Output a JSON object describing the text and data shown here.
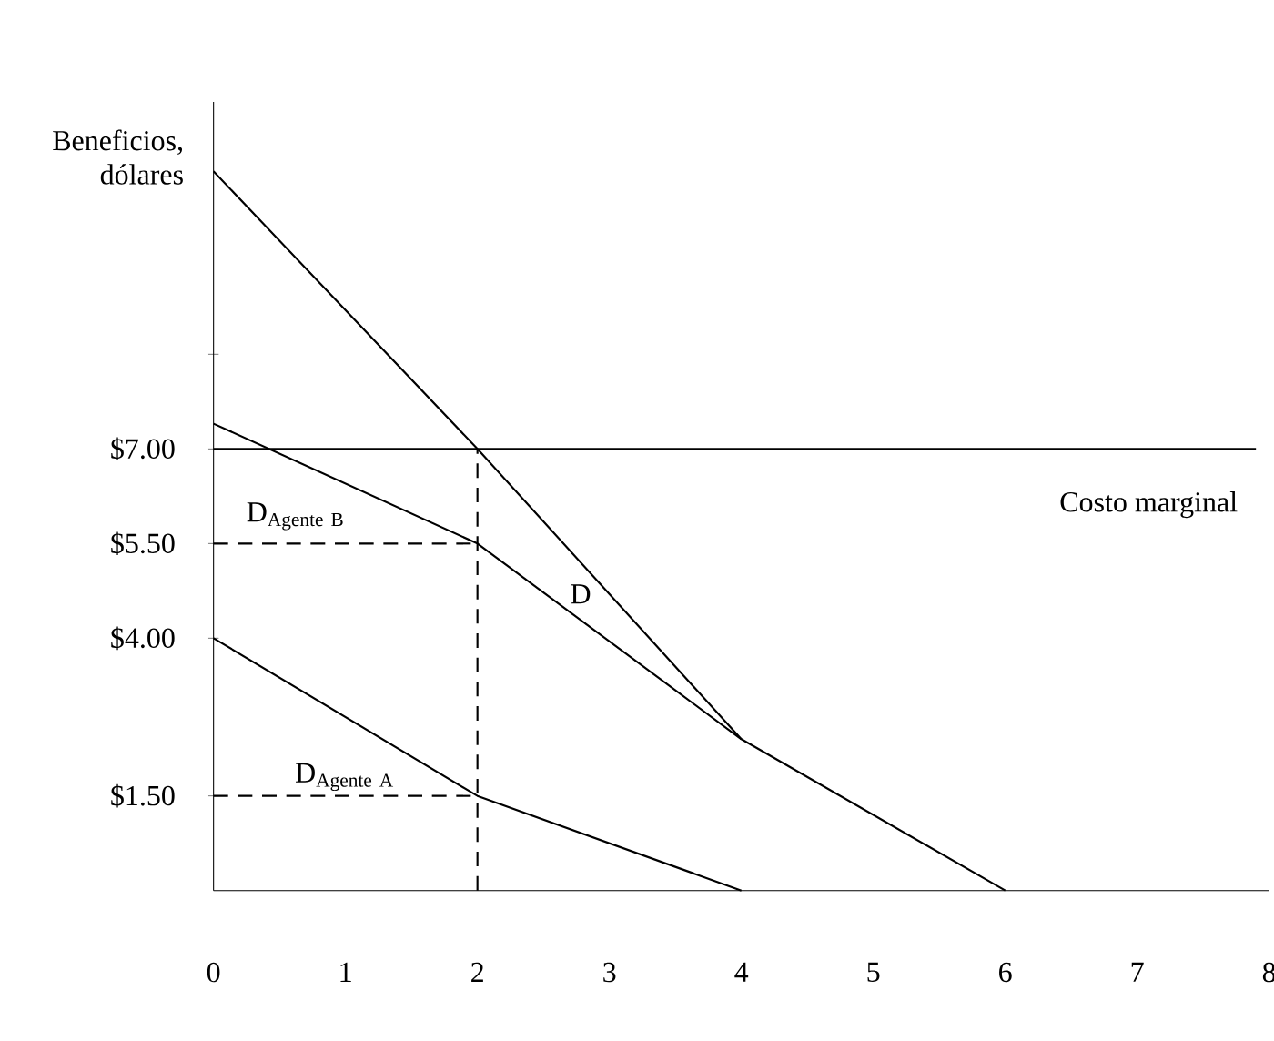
{
  "chart_data": {
    "type": "line",
    "ylabel": "Beneficios, dólares",
    "xlim": [
      0,
      8
    ],
    "xticks": [
      0,
      1,
      2,
      3,
      4,
      5,
      6,
      7,
      8
    ],
    "ylim": [
      0,
      12.5
    ],
    "yticks": [
      {
        "value": 1.5,
        "label": "$1.50"
      },
      {
        "value": 4,
        "label": "$4.00"
      },
      {
        "value": 5.5,
        "label": "$5.50"
      },
      {
        "value": 7,
        "label": "$7.00"
      },
      {
        "value": 8.5,
        "label": null
      }
    ],
    "grid": false,
    "line_style": "solid",
    "marker": "none",
    "series": [
      {
        "name": "\\mathrm{D}_{\\mathrm{Agente\\ A}}",
        "color": "#000000",
        "x": [
          0,
          2,
          4
        ],
        "values": [
          4,
          1.5,
          0
        ]
      },
      {
        "name": "\\mathrm{D}_{\\mathrm{Agente\\ B}}",
        "color": "#000000",
        "x": [
          0,
          2,
          4,
          6
        ],
        "values": [
          7.4,
          5.5,
          2.4,
          0
        ]
      },
      {
        "name": "D",
        "color": "#000000",
        "x": [
          0,
          2,
          4
        ],
        "values": [
          11.4,
          7,
          2.4
        ]
      },
      {
        "name": "Costo marginal",
        "color": "#000000",
        "x": [
          0,
          7.9
        ],
        "values": [
          7,
          7
        ]
      },
      {
        "color": "#000000",
        "x": [
          0,
          2
        ],
        "values": [
          5.5,
          5.5
        ],
        "line_style": "dashed"
      },
      {
        "color": "#000000",
        "x": [
          0,
          2
        ],
        "values": [
          1.5,
          1.5
        ],
        "line_style": "dashed"
      },
      {
        "color": "#000000",
        "x": [
          2,
          2
        ],
        "values": [
          0,
          7
        ],
        "line_style": "dashed"
      }
    ]
  }
}
